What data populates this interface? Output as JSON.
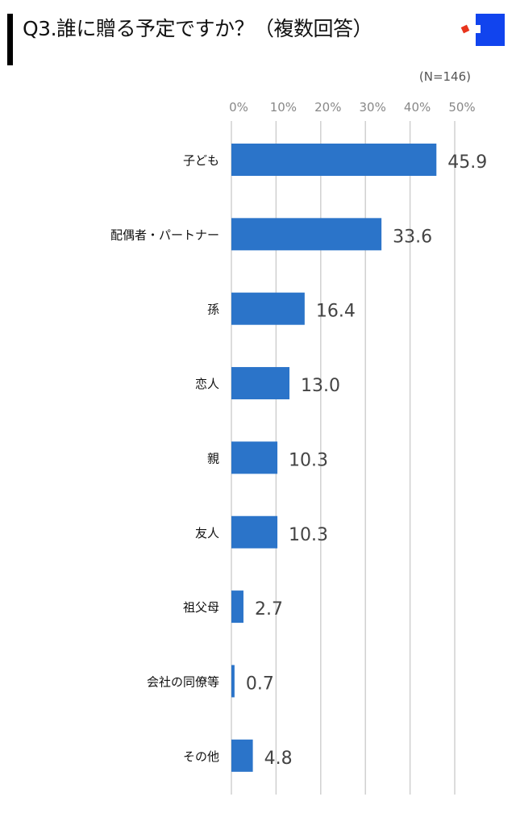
{
  "header": {
    "title": "Q3.誰に贈る予定ですか？（複数回答）",
    "sample": "(N=146)"
  },
  "colors": {
    "bar": "#2b74c9",
    "grid": "#d0d0d0",
    "logo_blue": "#1144ee",
    "logo_red": "#e8341c"
  },
  "chart_data": {
    "type": "bar",
    "orientation": "horizontal",
    "title": "Q3.誰に贈る予定ですか？（複数回答）",
    "categories": [
      "子ども",
      "配偶者・パートナー",
      "孫",
      "恋人",
      "親",
      "友人",
      "祖父母",
      "会社の同僚等",
      "その他"
    ],
    "values": [
      45.9,
      33.6,
      16.4,
      13.0,
      10.3,
      10.3,
      2.7,
      0.7,
      4.8
    ],
    "value_labels": [
      "45.9",
      "33.6",
      "16.4",
      "13.0",
      "10.3",
      "10.3",
      "2.7",
      "0.7",
      "4.8"
    ],
    "xticks": [
      "0%",
      "10%",
      "20%",
      "30%",
      "40%",
      "50%"
    ],
    "xlim": [
      0,
      50
    ],
    "grid": true,
    "unit": "%"
  }
}
